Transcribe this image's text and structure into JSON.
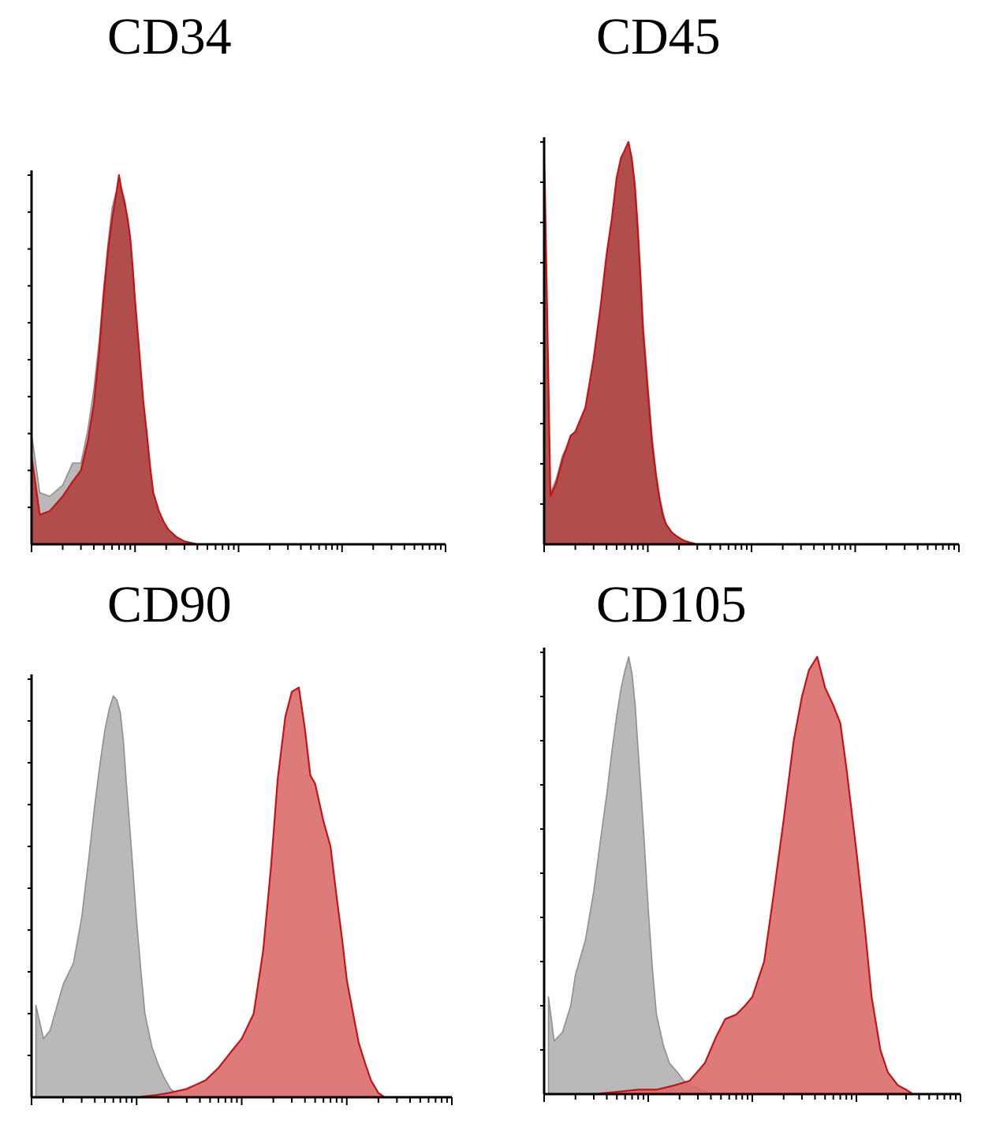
{
  "colors": {
    "isotype_fill": "#b9b9b9",
    "isotype_stroke": "#8f8f8f",
    "marker_fill_overlap": "#b04a4a",
    "marker_fill": "#d96d6d",
    "marker_stroke": "#c81212",
    "axis": "#000000"
  },
  "chart_data": [
    {
      "type": "area",
      "title": "CD34",
      "xlabel": "",
      "ylabel": "",
      "xscale": "log",
      "xlim": [
        1,
        10000
      ],
      "ylim": [
        0,
        100
      ],
      "grid": false,
      "series": [
        {
          "role": "isotype",
          "x": [
            1,
            1.2,
            1.5,
            2,
            2.5,
            3,
            3.5,
            4,
            4.5,
            5,
            5.5,
            6,
            6.5,
            7,
            7.5,
            8,
            8.5,
            9,
            9.5,
            10,
            11,
            12,
            13,
            14,
            15,
            17,
            19,
            21,
            25,
            30,
            40
          ],
          "y": [
            30,
            14,
            13,
            16,
            22,
            22,
            31,
            42,
            55,
            70,
            82,
            91,
            95,
            97,
            96,
            93,
            87,
            80,
            72,
            62,
            48,
            36,
            27,
            18,
            12,
            7,
            5,
            3,
            1.5,
            0.5,
            0
          ]
        },
        {
          "role": "marker",
          "x": [
            1,
            1.2,
            1.5,
            2,
            2.5,
            3,
            3.5,
            4,
            4.5,
            5,
            5.5,
            6,
            6.5,
            7,
            7.5,
            8,
            8.5,
            9,
            9.5,
            10,
            11,
            12,
            13,
            14,
            15,
            17,
            19,
            21,
            25,
            30,
            40
          ],
          "y": [
            24,
            8,
            9,
            13,
            17,
            20,
            28,
            38,
            52,
            68,
            80,
            88,
            94,
            100,
            95,
            92,
            88,
            83,
            75,
            66,
            52,
            39,
            30,
            21,
            14,
            9,
            6,
            4,
            2,
            0.8,
            0
          ]
        }
      ]
    },
    {
      "type": "area",
      "title": "CD45",
      "xlabel": "",
      "ylabel": "",
      "xscale": "log",
      "xlim": [
        1,
        10000
      ],
      "ylim": [
        0,
        100
      ],
      "grid": false,
      "series": [
        {
          "role": "isotype",
          "x": [
            1,
            1.15,
            1.3,
            1.5,
            1.8,
            2,
            2.5,
            3,
            3.5,
            4,
            4.5,
            5,
            5.5,
            6,
            6.5,
            7,
            7.5,
            8,
            8.5,
            9,
            10,
            11,
            12,
            13,
            14,
            15,
            17,
            19,
            22,
            25,
            30
          ],
          "y": [
            25,
            13,
            16,
            22,
            26,
            27,
            33,
            45,
            58,
            70,
            80,
            90,
            95,
            97,
            98,
            96,
            90,
            80,
            68,
            55,
            40,
            27,
            18,
            12,
            8,
            5,
            3,
            2,
            1,
            0.5,
            0
          ]
        },
        {
          "role": "marker",
          "x": [
            1,
            1.15,
            1.3,
            1.5,
            1.8,
            2,
            2.5,
            3,
            3.5,
            4,
            4.5,
            5,
            5.5,
            6,
            6.5,
            7,
            7.5,
            8,
            8.5,
            9,
            10,
            11,
            12,
            13,
            14,
            15,
            17,
            19,
            22,
            25,
            30
          ],
          "y": [
            100,
            12,
            15,
            21,
            27,
            28,
            34,
            46,
            59,
            72,
            81,
            91,
            96,
            98,
            100,
            96,
            89,
            78,
            66,
            53,
            38,
            25,
            17,
            11,
            7,
            5,
            3,
            2,
            1,
            0.5,
            0
          ]
        }
      ]
    },
    {
      "type": "area",
      "title": "CD90",
      "xlabel": "",
      "ylabel": "",
      "xscale": "log",
      "xlim": [
        1,
        10000
      ],
      "ylim": [
        0,
        100
      ],
      "grid": false,
      "series": [
        {
          "role": "isotype",
          "x": [
            1.1,
            1.3,
            1.5,
            1.8,
            2,
            2.5,
            3,
            3.5,
            4,
            4.5,
            5,
            5.5,
            6,
            6.5,
            7,
            7.5,
            8,
            9,
            10,
            11,
            12,
            14,
            16,
            18,
            21,
            25,
            30
          ],
          "y": [
            22,
            14,
            16,
            23,
            27,
            32,
            43,
            57,
            70,
            80,
            88,
            93,
            96,
            95,
            92,
            85,
            75,
            58,
            42,
            30,
            20,
            12,
            8,
            5,
            2,
            0.5,
            0
          ]
        },
        {
          "role": "marker",
          "x": [
            10,
            15,
            20,
            30,
            45,
            60,
            80,
            100,
            130,
            160,
            190,
            220,
            260,
            300,
            350,
            400,
            450,
            500,
            600,
            700,
            800,
            900,
            1000,
            1150,
            1300,
            1500,
            1700,
            2000,
            2300
          ],
          "y": [
            0,
            0.5,
            1,
            2,
            4,
            7,
            11,
            14,
            20,
            35,
            55,
            76,
            91,
            97,
            98,
            88,
            77,
            75,
            66,
            60,
            48,
            38,
            28,
            20,
            13,
            8,
            4,
            1,
            0
          ]
        }
      ]
    },
    {
      "type": "area",
      "title": "CD105",
      "xlabel": "",
      "ylabel": "",
      "xscale": "log",
      "xlim": [
        1,
        10000
      ],
      "ylim": [
        0,
        100
      ],
      "grid": false,
      "series": [
        {
          "role": "isotype",
          "x": [
            1.1,
            1.25,
            1.5,
            1.8,
            2,
            2.5,
            3,
            3.5,
            4,
            4.5,
            5,
            5.5,
            6,
            6.5,
            7,
            7.5,
            8,
            9,
            10,
            11,
            12,
            14,
            16,
            19,
            22,
            26,
            32,
            40
          ],
          "y": [
            22,
            12,
            14,
            20,
            27,
            35,
            46,
            58,
            68,
            78,
            86,
            92,
            96,
            99,
            95,
            88,
            78,
            60,
            42,
            28,
            18,
            11,
            7,
            5,
            3,
            2,
            1,
            0
          ]
        },
        {
          "role": "marker",
          "x": [
            3,
            5,
            8,
            12,
            18,
            25,
            35,
            45,
            55,
            70,
            85,
            100,
            130,
            160,
            200,
            250,
            300,
            350,
            420,
            500,
            600,
            700,
            800,
            1000,
            1200,
            1400,
            1700,
            2000,
            2500,
            3000,
            3500
          ],
          "y": [
            0,
            0.5,
            1,
            1,
            2,
            3,
            7,
            13,
            17,
            18,
            20,
            22,
            30,
            45,
            62,
            80,
            90,
            96,
            99,
            92,
            88,
            84,
            74,
            55,
            38,
            22,
            10,
            5,
            2,
            1,
            0
          ]
        }
      ]
    }
  ]
}
